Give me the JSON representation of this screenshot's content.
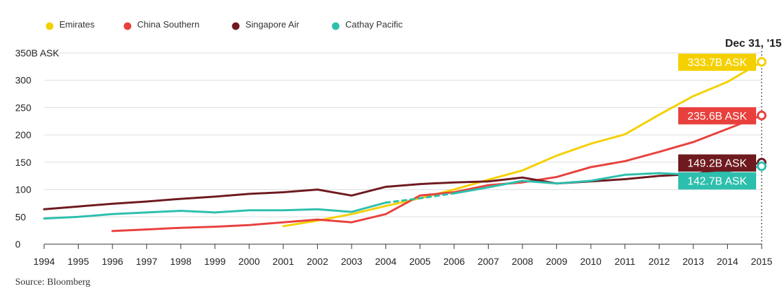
{
  "chart_data": {
    "type": "line",
    "title": "",
    "source": "Source: Bloomberg",
    "xlabel": "",
    "ylabel": "",
    "y_top_label": "350B ASK",
    "ylim": [
      0,
      350
    ],
    "xlim": [
      1994,
      2015
    ],
    "y_ticks": [
      {
        "value": 0,
        "label": "0"
      },
      {
        "value": 50,
        "label": "50"
      },
      {
        "value": 100,
        "label": "100"
      },
      {
        "value": 150,
        "label": "150"
      },
      {
        "value": 200,
        "label": "200"
      },
      {
        "value": 250,
        "label": "250"
      },
      {
        "value": 300,
        "label": "300"
      },
      {
        "value": 350,
        "label": "350B ASK"
      }
    ],
    "x_ticks": [
      "1994",
      "1995",
      "1996",
      "1997",
      "1998",
      "1999",
      "2000",
      "2001",
      "2002",
      "2003",
      "2004",
      "2005",
      "2006",
      "2007",
      "2008",
      "2009",
      "2010",
      "2011",
      "2012",
      "2013",
      "2014",
      "2015"
    ],
    "legend_position": "top-left",
    "grid": "horizontal",
    "hover": {
      "x": 2015,
      "label": "Dec 31, '15"
    },
    "series": [
      {
        "name": "Emirates",
        "color": "#f5d000",
        "end_label": "333.7B ASK",
        "points": [
          [
            2001,
            33
          ],
          [
            2002,
            43
          ],
          [
            2003,
            55
          ],
          [
            2004,
            70
          ],
          [
            2005,
            84
          ],
          [
            2006,
            100
          ],
          [
            2007,
            118
          ],
          [
            2008,
            135
          ],
          [
            2009,
            162
          ],
          [
            2010,
            184
          ],
          [
            2011,
            201
          ],
          [
            2012,
            237
          ],
          [
            2013,
            271
          ],
          [
            2014,
            297
          ],
          [
            2015,
            333.7
          ]
        ]
      },
      {
        "name": "China Southern",
        "color": "#e8413d",
        "end_label": "235.6B ASK",
        "points": [
          [
            1996,
            24
          ],
          [
            1997,
            27
          ],
          [
            1998,
            30
          ],
          [
            1999,
            32
          ],
          [
            2000,
            35
          ],
          [
            2001,
            40
          ],
          [
            2002,
            45
          ],
          [
            2003,
            40
          ],
          [
            2004,
            55
          ],
          [
            2005,
            89
          ],
          [
            2006,
            95
          ],
          [
            2007,
            108
          ],
          [
            2008,
            113
          ],
          [
            2009,
            123
          ],
          [
            2010,
            141
          ],
          [
            2011,
            152
          ],
          [
            2012,
            169
          ],
          [
            2013,
            187
          ],
          [
            2014,
            211
          ],
          [
            2015,
            235.6
          ]
        ]
      },
      {
        "name": "Singapore Air",
        "color": "#6e1a1f",
        "end_label": "149.2B ASK",
        "points": [
          [
            1994,
            64
          ],
          [
            1995,
            69
          ],
          [
            1996,
            74
          ],
          [
            1997,
            78
          ],
          [
            1998,
            83
          ],
          [
            1999,
            87
          ],
          [
            2000,
            92
          ],
          [
            2001,
            95
          ],
          [
            2002,
            100
          ],
          [
            2003,
            89
          ],
          [
            2004,
            105
          ],
          [
            2005,
            110
          ],
          [
            2006,
            113
          ],
          [
            2007,
            115
          ],
          [
            2008,
            122
          ],
          [
            2009,
            111
          ],
          [
            2010,
            115
          ],
          [
            2011,
            119
          ],
          [
            2012,
            125
          ],
          [
            2013,
            128
          ],
          [
            2014,
            138
          ],
          [
            2015,
            149.2
          ]
        ]
      },
      {
        "name": "Cathay Pacific",
        "color": "#2dbfad",
        "end_label": "142.7B ASK",
        "dashed_ranges": [
          [
            2004,
            2006
          ]
        ],
        "points": [
          [
            1994,
            47
          ],
          [
            1995,
            50
          ],
          [
            1996,
            55
          ],
          [
            1997,
            58
          ],
          [
            1998,
            61
          ],
          [
            1999,
            58
          ],
          [
            2000,
            62
          ],
          [
            2001,
            62
          ],
          [
            2002,
            64
          ],
          [
            2003,
            59
          ],
          [
            2004,
            76
          ],
          [
            2005,
            84
          ],
          [
            2006,
            93
          ],
          [
            2007,
            104
          ],
          [
            2008,
            116
          ],
          [
            2009,
            111
          ],
          [
            2010,
            116
          ],
          [
            2011,
            127
          ],
          [
            2012,
            130
          ],
          [
            2013,
            127
          ],
          [
            2014,
            133
          ],
          [
            2015,
            142.7
          ]
        ]
      }
    ]
  }
}
